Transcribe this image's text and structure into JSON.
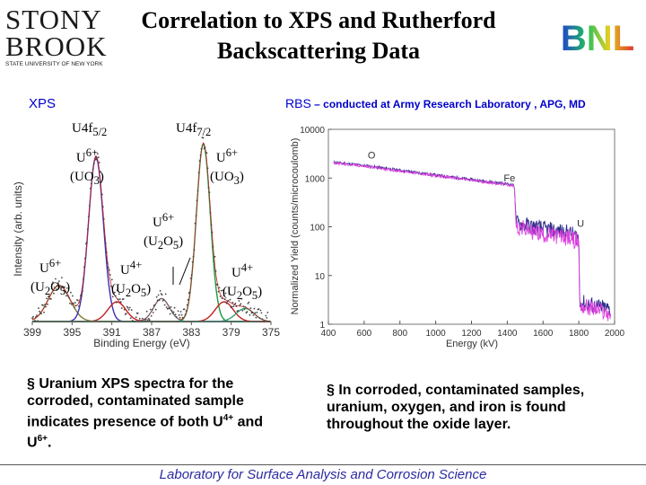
{
  "header": {
    "title_line1": "Correlation to XPS and Rutherford",
    "title_line2": "Backscattering Data",
    "logo_left": {
      "line1": "STONY",
      "line2": "BROOK",
      "subtitle": "STATE UNIVERSITY OF NEW YORK"
    },
    "logo_right": {
      "text": "BNL"
    }
  },
  "xps_label": "XPS",
  "rbs_label_main": "RBS",
  "rbs_label_rest": " – conducted at Army Research Laboratory , APG, MD",
  "bullets": {
    "left": {
      "marker": "§",
      "text": " Uranium XPS spectra for the corroded, contaminated sample indicates presence of both ",
      "u4": "U",
      "u4_sup": "4+",
      "and": " and ",
      "u6": "U",
      "u6_sup": "6+",
      "end": "."
    },
    "right": {
      "marker": "§",
      "text": "  In corroded, contaminated samples, uranium, oxygen, and iron is found throughout the oxide layer."
    }
  },
  "footer": "Laboratory for Surface Analysis and Corrosion Science",
  "chart_data": [
    {
      "type": "line",
      "xlabel": "Binding Energy (eV)",
      "ylabel": "Intensity (arb. units)",
      "xlim": [
        399,
        375
      ],
      "x_reversed": true,
      "x_ticks": [
        399,
        395,
        391,
        387,
        383,
        379,
        375
      ],
      "peak_labels": {
        "u4f52": {
          "main": "U4f",
          "sub": "5/2"
        },
        "u4f72": {
          "main": "U4f",
          "sub": "7/2"
        },
        "u6_uo3_left": {
          "main": "U",
          "sup": "6+",
          "line2": "(UO",
          "sub2": "3",
          "end": ")"
        },
        "u6_uo3_right": {
          "main": "U",
          "sup": "6+",
          "line2": "(UO",
          "sub2": "3",
          "end": ")"
        },
        "u6_u2o5_mid": {
          "main": "U",
          "sup": "6+",
          "line2": "(U",
          "sub2": "2",
          "mid": "O",
          "sub3": "5",
          "end": ")"
        },
        "u6_u2o5_left": {
          "main": "U",
          "sup": "6+",
          "line2": "(U",
          "sub2": "2",
          "mid": "O",
          "sub3": "5",
          "end": ")"
        },
        "u4_u2o5_mid": {
          "main": "U",
          "sup": "4+",
          "line2": "(U",
          "sub2": "2",
          "mid": "O",
          "sub3": "5",
          "end": ")"
        },
        "u4_u2o5_right": {
          "main": "U",
          "sup": "4+",
          "line2": "(U",
          "sub2": "2",
          "mid": "O",
          "sub3": "5",
          "end": ")"
        }
      },
      "components": [
        {
          "center": 396.3,
          "width": 1.1,
          "height": 0.22,
          "color": "#7a7a30"
        },
        {
          "center": 392.6,
          "width": 0.75,
          "height": 1.0,
          "color": "#3b2fb0"
        },
        {
          "center": 390.5,
          "width": 0.9,
          "height": 0.12,
          "color": "#c02020"
        },
        {
          "center": 386.0,
          "width": 0.8,
          "height": 0.14,
          "color": "#30c0e0"
        },
        {
          "center": 381.8,
          "width": 0.7,
          "height": 1.08,
          "color": "#1a9a3a"
        },
        {
          "center": 379.7,
          "width": 0.9,
          "height": 0.12,
          "color": "#c02020"
        },
        {
          "center": 377.6,
          "width": 0.9,
          "height": 0.08,
          "color": "#30a070"
        }
      ]
    },
    {
      "type": "line",
      "xlabel": "Energy (kV)",
      "ylabel": "Normalized Yield (counts/microcoulomb)",
      "xlim": [
        400,
        2000
      ],
      "ylim": [
        1,
        10000
      ],
      "y_scale": "log",
      "x_ticks": [
        400,
        600,
        800,
        1000,
        1200,
        1400,
        1600,
        1800,
        2000
      ],
      "y_ticks": [
        1,
        10,
        100,
        1000,
        10000
      ],
      "annotations": [
        {
          "text": "O",
          "x": 620,
          "y": 2500
        },
        {
          "text": "Fe",
          "x": 1380,
          "y": 850
        },
        {
          "text": "U",
          "x": 1790,
          "y": 100
        }
      ],
      "series": [
        {
          "color": "#2a2a8a",
          "points": [
            [
              430,
              2100
            ],
            [
              600,
              1800
            ],
            [
              800,
              1450
            ],
            [
              1000,
              1150
            ],
            [
              1200,
              930
            ],
            [
              1400,
              760
            ],
            [
              1440,
              700
            ],
            [
              1450,
              120
            ],
            [
              1600,
              90
            ],
            [
              1740,
              75
            ],
            [
              1800,
              60
            ],
            [
              1805,
              2.8
            ],
            [
              1900,
              2.3
            ],
            [
              1980,
              2.0
            ]
          ]
        },
        {
          "color": "#e040e0",
          "points": [
            [
              430,
              2050
            ],
            [
              600,
              1750
            ],
            [
              800,
              1400
            ],
            [
              1000,
              1120
            ],
            [
              1200,
              900
            ],
            [
              1400,
              730
            ],
            [
              1440,
              680
            ],
            [
              1450,
              100
            ],
            [
              1600,
              70
            ],
            [
              1740,
              60
            ],
            [
              1800,
              50
            ],
            [
              1805,
              2.4
            ],
            [
              1900,
              2.0
            ],
            [
              1980,
              1.6
            ]
          ]
        }
      ]
    }
  ]
}
